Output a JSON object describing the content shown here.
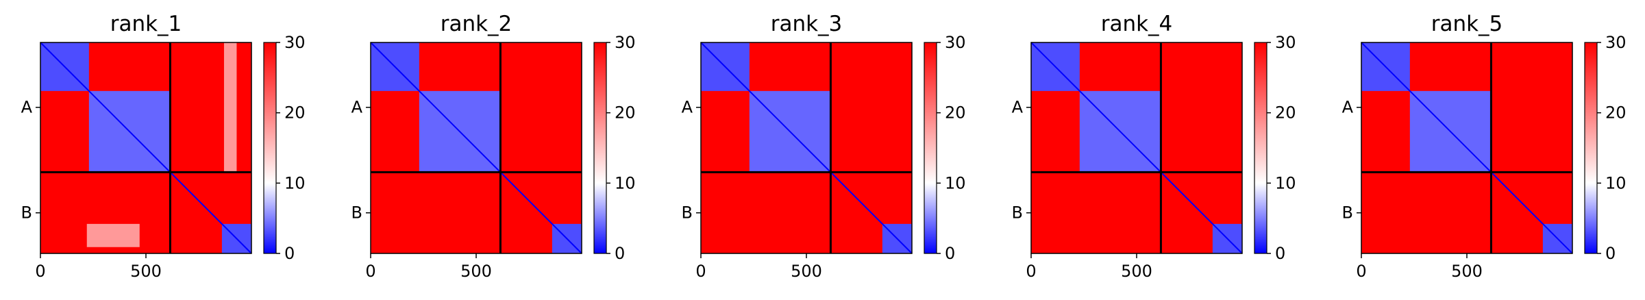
{
  "chart_data": [
    {
      "type": "heatmap",
      "title": "rank_1",
      "chains": [
        "A",
        "B"
      ],
      "chain_break": 615,
      "length": 1000,
      "xticks": [
        0,
        500
      ],
      "colorbar": {
        "min": 0,
        "max": 30,
        "ticks": [
          0,
          10,
          20,
          30
        ],
        "colors": [
          "#0000ff",
          "#ffffff",
          "#ff0000"
        ]
      },
      "blocks": [
        {
          "rows": [
            0,
            230
          ],
          "cols": [
            0,
            230
          ],
          "value": 3
        },
        {
          "rows": [
            230,
            615
          ],
          "cols": [
            230,
            615
          ],
          "value": 4
        },
        {
          "rows": [
            860,
            1000
          ],
          "cols": [
            860,
            1000
          ],
          "value": 3
        },
        {
          "rows": [
            0,
            615
          ],
          "cols": [
            870,
            930
          ],
          "value": 18
        },
        {
          "rows": [
            860,
            970
          ],
          "cols": [
            220,
            470
          ],
          "value": 18
        }
      ]
    },
    {
      "type": "heatmap",
      "title": "rank_2",
      "chains": [
        "A",
        "B"
      ],
      "chain_break": 615,
      "length": 1000,
      "xticks": [
        0,
        500
      ],
      "colorbar": {
        "min": 0,
        "max": 30,
        "ticks": [
          0,
          10,
          20,
          30
        ],
        "colors": [
          "#0000ff",
          "#ffffff",
          "#ff0000"
        ]
      },
      "blocks": [
        {
          "rows": [
            0,
            230
          ],
          "cols": [
            0,
            230
          ],
          "value": 3
        },
        {
          "rows": [
            230,
            615
          ],
          "cols": [
            230,
            615
          ],
          "value": 4
        },
        {
          "rows": [
            860,
            1000
          ],
          "cols": [
            860,
            1000
          ],
          "value": 3
        }
      ]
    },
    {
      "type": "heatmap",
      "title": "rank_3",
      "chains": [
        "A",
        "B"
      ],
      "chain_break": 615,
      "length": 1000,
      "xticks": [
        0,
        500
      ],
      "colorbar": {
        "min": 0,
        "max": 30,
        "ticks": [
          0,
          10,
          20,
          30
        ],
        "colors": [
          "#0000ff",
          "#ffffff",
          "#ff0000"
        ]
      },
      "blocks": [
        {
          "rows": [
            0,
            230
          ],
          "cols": [
            0,
            230
          ],
          "value": 3
        },
        {
          "rows": [
            230,
            615
          ],
          "cols": [
            230,
            615
          ],
          "value": 4
        },
        {
          "rows": [
            860,
            1000
          ],
          "cols": [
            860,
            1000
          ],
          "value": 3
        }
      ]
    },
    {
      "type": "heatmap",
      "title": "rank_4",
      "chains": [
        "A",
        "B"
      ],
      "chain_break": 615,
      "length": 1000,
      "xticks": [
        0,
        500
      ],
      "colorbar": {
        "min": 0,
        "max": 30,
        "ticks": [
          0,
          10,
          20,
          30
        ],
        "colors": [
          "#0000ff",
          "#ffffff",
          "#ff0000"
        ]
      },
      "blocks": [
        {
          "rows": [
            0,
            230
          ],
          "cols": [
            0,
            230
          ],
          "value": 3
        },
        {
          "rows": [
            230,
            615
          ],
          "cols": [
            230,
            615
          ],
          "value": 4
        },
        {
          "rows": [
            860,
            1000
          ],
          "cols": [
            860,
            1000
          ],
          "value": 3
        }
      ]
    },
    {
      "type": "heatmap",
      "title": "rank_5",
      "chains": [
        "A",
        "B"
      ],
      "chain_break": 615,
      "length": 1000,
      "xticks": [
        0,
        500
      ],
      "colorbar": {
        "min": 0,
        "max": 30,
        "ticks": [
          0,
          10,
          20,
          30
        ],
        "colors": [
          "#0000ff",
          "#ffffff",
          "#ff0000"
        ]
      },
      "blocks": [
        {
          "rows": [
            0,
            230
          ],
          "cols": [
            0,
            230
          ],
          "value": 3
        },
        {
          "rows": [
            230,
            615
          ],
          "cols": [
            230,
            615
          ],
          "value": 4
        },
        {
          "rows": [
            860,
            1000
          ],
          "cols": [
            860,
            1000
          ],
          "value": 3
        }
      ]
    }
  ]
}
